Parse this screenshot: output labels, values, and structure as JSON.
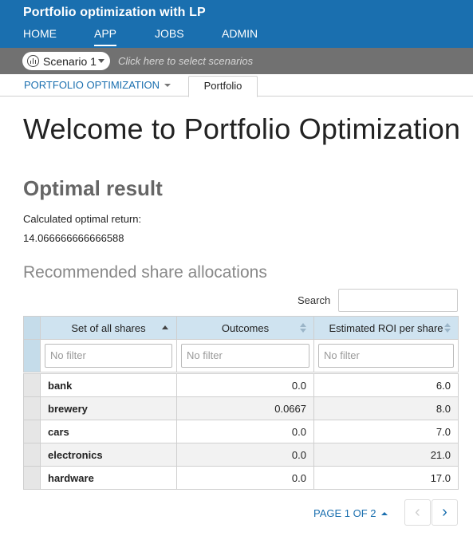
{
  "app": {
    "title": "Portfolio optimization with LP"
  },
  "nav": {
    "items": [
      "HOME",
      "APP",
      "JOBS",
      "ADMIN"
    ],
    "active": "APP"
  },
  "scenario": {
    "name": "Scenario 1",
    "hint": "Click here to select scenarios",
    "icon": "scenario-chart-icon"
  },
  "tabs": {
    "dropdown_label": "PORTFOLIO OPTIMIZATION",
    "active_tab": "Portfolio"
  },
  "page": {
    "title": "Welcome to Portfolio Optimization",
    "section_title": "Optimal result",
    "return_label": "Calculated optimal return:",
    "return_value": "14.066666666666588",
    "subsection_title": "Recommended share allocations"
  },
  "table": {
    "search_label": "Search",
    "columns": [
      "Set of all shares",
      "Outcomes",
      "Estimated ROI per share"
    ],
    "filter_placeholder": "No filter",
    "rows": [
      {
        "share": "bank",
        "outcome": "0.0",
        "roi": "6.0"
      },
      {
        "share": "brewery",
        "outcome": "0.0667",
        "roi": "8.0"
      },
      {
        "share": "cars",
        "outcome": "0.0",
        "roi": "7.0"
      },
      {
        "share": "electronics",
        "outcome": "0.0",
        "roi": "21.0"
      },
      {
        "share": "hardware",
        "outcome": "0.0",
        "roi": "17.0"
      }
    ]
  },
  "pager": {
    "label": "PAGE 1 OF 2",
    "prev_icon": "chevron-left-icon",
    "next_icon": "chevron-right-icon"
  },
  "colors": {
    "header": "#1a6faf",
    "scenario_bar": "#717171",
    "grid_header": "#cfe3f0"
  }
}
